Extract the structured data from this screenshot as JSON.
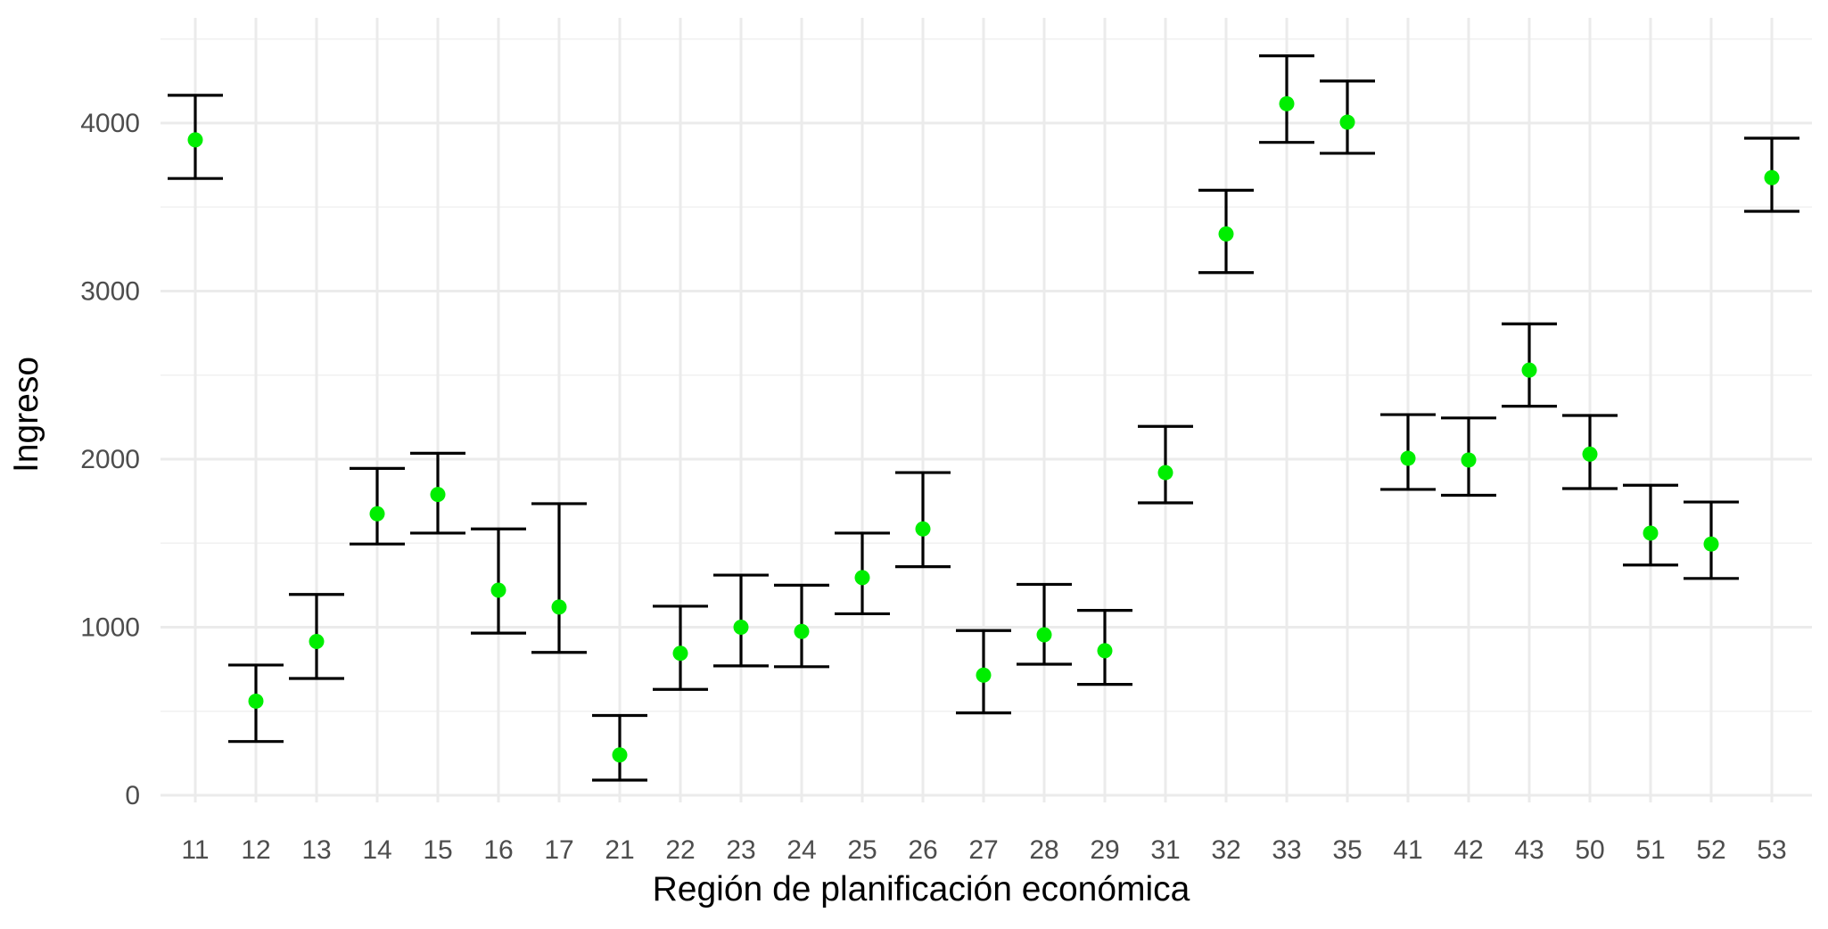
{
  "chart_data": {
    "type": "scatter",
    "subtype": "point-with-errorbars",
    "title": "",
    "xlabel": "Región de planificación económica",
    "ylabel": "Ingreso",
    "categories": [
      "11",
      "12",
      "13",
      "14",
      "15",
      "16",
      "17",
      "21",
      "22",
      "23",
      "24",
      "25",
      "26",
      "27",
      "28",
      "29",
      "31",
      "32",
      "33",
      "35",
      "41",
      "42",
      "43",
      "50",
      "51",
      "52",
      "53"
    ],
    "series": [
      {
        "values": [
          3900,
          560,
          915,
          1675,
          1790,
          1220,
          1120,
          240,
          845,
          1000,
          975,
          1295,
          1585,
          715,
          955,
          860,
          1920,
          3340,
          4115,
          4005,
          2005,
          1995,
          2530,
          2030,
          1560,
          1495,
          3675
        ],
        "lower": [
          3670,
          320,
          695,
          1495,
          1560,
          965,
          850,
          90,
          630,
          770,
          765,
          1080,
          1360,
          490,
          780,
          660,
          1740,
          3110,
          3885,
          3820,
          1820,
          1785,
          2315,
          1825,
          1370,
          1290,
          3475
        ],
        "upper": [
          4165,
          775,
          1195,
          1945,
          2035,
          1585,
          1735,
          475,
          1125,
          1310,
          1250,
          1560,
          1920,
          980,
          1255,
          1100,
          2195,
          3600,
          4400,
          4250,
          2265,
          2245,
          2805,
          2260,
          1845,
          1745,
          3910
        ]
      }
    ],
    "point_color": "#00ee00",
    "errorbar_color": "#000000",
    "ylim": [
      -90,
      4520
    ],
    "yticks": [
      0,
      1000,
      2000,
      3000,
      4000
    ],
    "ytick_labels": [
      "0",
      "1000",
      "2000",
      "3000",
      "4000"
    ],
    "grid": true,
    "legend": "none"
  }
}
